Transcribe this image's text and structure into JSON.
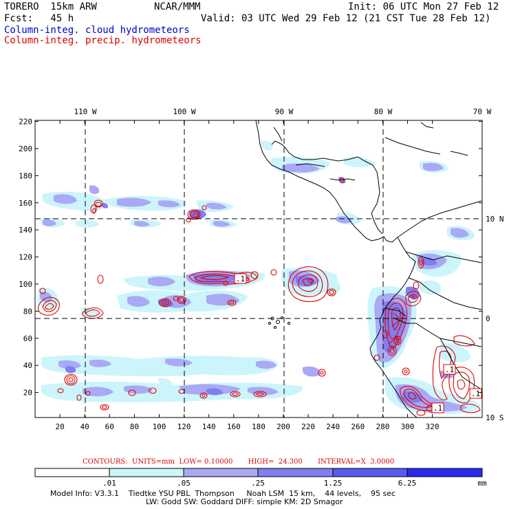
{
  "header": {
    "run_name": "TORERO  15km ARW",
    "center": "NCAR/MMM",
    "init": "Init: 06 UTC Mon 27 Feb 12",
    "fcst": "Fcst:   45 h",
    "valid": "Valid: 03 UTC Wed 29 Feb 12 (21 CST Tue 28 Feb 12)",
    "field1": "Column-integ. cloud hydrometeors",
    "field2": "Column-integ. precip. hydrometeors"
  },
  "colors": {
    "field1": "#0000cc",
    "field2": "#dd0000",
    "shade_levels": [
      "#ffffff",
      "#ccf4fb",
      "#a9a9f5",
      "#7f7ff0",
      "#5a5aee",
      "#2a2aef"
    ],
    "contour": "#dd0000"
  },
  "map": {
    "lon_labels": [
      "110 W",
      "100 W",
      "90 W",
      "80 W",
      "70 W"
    ],
    "lat_labels": [
      "10 N",
      "0",
      "10 S"
    ],
    "x_ticks": [
      "20",
      "40",
      "60",
      "80",
      "100",
      "120",
      "140",
      "160",
      "180",
      "200",
      "220",
      "240",
      "260",
      "280",
      "300",
      "320"
    ],
    "y_ticks": [
      "20",
      "40",
      "60",
      "80",
      "100",
      "120",
      "140",
      "160",
      "180",
      "200",
      "220"
    ],
    "contour_labels": [
      ".1",
      ".1",
      ".1",
      ".1"
    ]
  },
  "contour_info": "CONTOURS:  UNITS=mm  LOW= 0.10000       HIGH=  24.300       INTERVAL=X  3.0000",
  "colorbar": {
    "labels": [
      ".01",
      ".05",
      ".25",
      "1.25",
      "6.25"
    ],
    "units": "mm"
  },
  "model_info": {
    "line1": "Model Info: V3.3.1    Tiedtke YSU PBL  Thompson     Noah LSM  15 km,    44 levels,    95 sec",
    "line2": "LW: Godd SW: Goddard DIFF: simple KM: 2D Smagor"
  }
}
